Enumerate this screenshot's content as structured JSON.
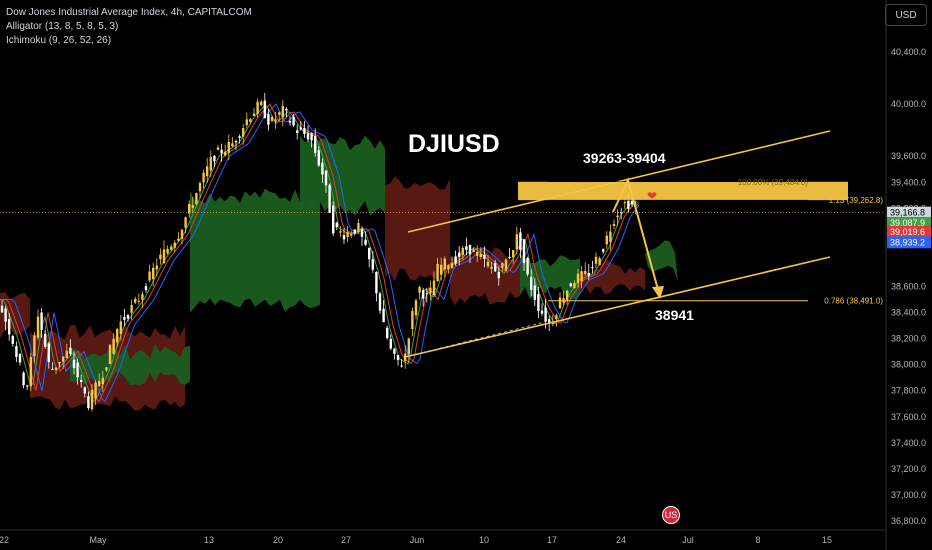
{
  "legend": {
    "symbol": "Dow Jones Industrial Average Index, 4h, CAPITALCOM",
    "alligator": "Alligator (13, 8, 5, 8, 5, 3)",
    "ichimoku": "Ichimoku (9, 26, 52, 26)"
  },
  "currency_label": "USD",
  "colors": {
    "background": "#000000",
    "bull": "#f5c542",
    "bear": "#ffffff",
    "cloud_green": "#1b5e20",
    "cloud_red": "#5d1a14",
    "annotation": "#f5c542",
    "jaw": "#2962ff",
    "teeth": "#e53935",
    "lips": "#43a047"
  },
  "chart_data": {
    "type": "candlestick",
    "title": "Dow Jones Industrial Average Index, 4h, CAPITALCOM",
    "ylim": [
      36750,
      40800
    ],
    "y_ticks": [
      40400,
      40000,
      39600,
      39400,
      39200,
      38600,
      38400,
      38200,
      38000,
      37800,
      37600,
      37400,
      37200,
      37000,
      36800
    ],
    "y_tick_labels": [
      "40,400.0",
      "40,000.0",
      "39,600.0",
      "39,400.0",
      "39,200.0",
      "38,600.0",
      "38,400.0",
      "38,200.0",
      "38,000.0",
      "37,800.0",
      "37,600.0",
      "37,400.0",
      "37,200.0",
      "37,000.0",
      "36,800.0"
    ],
    "x_tick_labels": [
      "22",
      "May",
      "13",
      "20",
      "27",
      "Jun",
      "10",
      "17",
      "24",
      "Jul",
      "8",
      "15"
    ],
    "price_tags": [
      {
        "label": "39,166.8",
        "value": 39166.8,
        "color": "#cfd8dc"
      },
      {
        "label": "39,087.9",
        "value": 39087.9,
        "color": "#43a047"
      },
      {
        "label": "39,019.6",
        "value": 39019.6,
        "color": "#e53935"
      },
      {
        "label": "38,939.2",
        "value": 38939.2,
        "color": "#2962ff"
      }
    ],
    "annotations": {
      "main_label": "DJIUSD",
      "zone_label": "39263-39404",
      "target_label": "38941",
      "fib_top": "100.00% (39,404.0)",
      "fib_1_13": "1.13 (39,262.8)",
      "fib_0_786": "0.786 (38,491.0)"
    },
    "calendar_event": "US"
  }
}
